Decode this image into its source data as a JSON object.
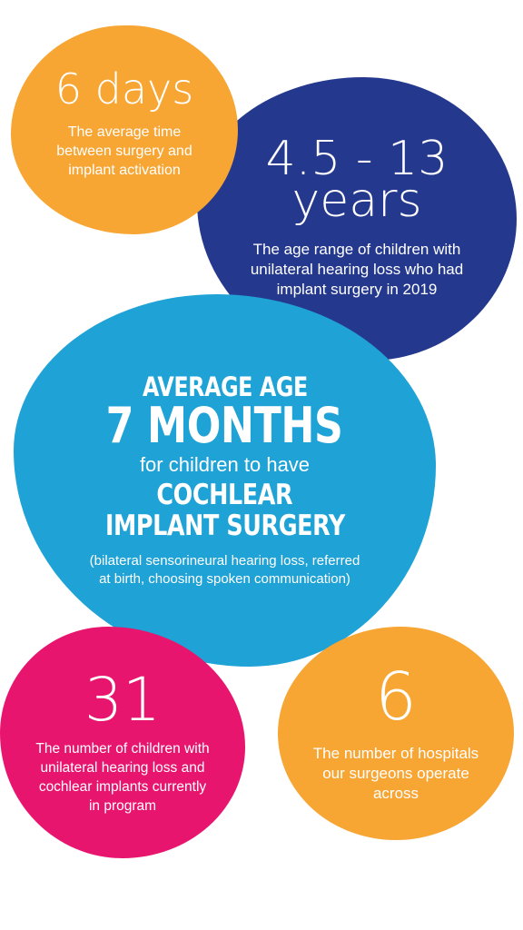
{
  "colors": {
    "orange": "#F7A533",
    "navy": "#24388E",
    "blue": "#1FA2D6",
    "pink": "#E8156F",
    "text": "#FFFFFF"
  },
  "stats": {
    "activation": {
      "value": "6 days",
      "description": "The average time between surgery and implant activation"
    },
    "age_range": {
      "value_line1": "4.5 - 13",
      "value_line2": "years",
      "description": "The age range of children with unilateral hearing loss who had implant surgery in 2019"
    },
    "average_age": {
      "label": "AVERAGE AGE",
      "value": "7 MONTHS",
      "connector": "for children to have",
      "line3": "COCHLEAR",
      "line4": "IMPLANT SURGERY",
      "note": "(bilateral sensorineural hearing loss, referred at birth, choosing spoken communication)"
    },
    "children_count": {
      "value": "31",
      "description": "The number of children with unilateral hearing loss and cochlear implants currently in program"
    },
    "hospitals": {
      "value": "6",
      "description": "The number of hospitals our surgeons operate across"
    }
  }
}
